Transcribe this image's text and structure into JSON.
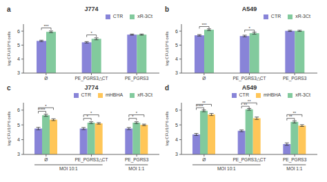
{
  "chart_data": [
    {
      "type": "bar",
      "panel_label": "a",
      "title": "J774",
      "ylabel": "log CFU/10^6 cells",
      "categories": [
        "Ø",
        "PE_PGRS3△CT",
        "PE_PGRS3"
      ],
      "series": [
        {
          "name": "CTR",
          "color": "#8884d8",
          "values": [
            5.3,
            5.2,
            5.75
          ],
          "errors": [
            0.05,
            0.05,
            0.04
          ]
        },
        {
          "name": "xR-3Ct",
          "color": "#82ca9d",
          "values": [
            5.95,
            5.45,
            5.75
          ],
          "errors": [
            0.06,
            0.07,
            0.04
          ]
        }
      ],
      "ylim": [
        3,
        6.5
      ],
      "yticks": [
        3,
        4,
        5,
        6
      ],
      "legend": "upper right",
      "annotations": [
        {
          "text": "***",
          "category": "Ø",
          "from": "CTR",
          "to": "xR-3Ct",
          "y": 6.08
        },
        {
          "text": "*",
          "category": "PE_PGRS3△CT",
          "from": "CTR",
          "to": "xR-3Ct",
          "y": 5.58
        }
      ]
    },
    {
      "type": "bar",
      "panel_label": "b",
      "title": "A549",
      "ylabel": "log CFU/10^6 cells",
      "categories": [
        "Ø",
        "PE_PGRS3△CT",
        "PE_PGRS3"
      ],
      "series": [
        {
          "name": "CTR",
          "color": "#8884d8",
          "values": [
            5.7,
            5.65,
            6.02
          ],
          "errors": [
            0.05,
            0.06,
            0.04
          ]
        },
        {
          "name": "xR-3Ct",
          "color": "#82ca9d",
          "values": [
            6.1,
            5.85,
            6.02
          ],
          "errors": [
            0.06,
            0.07,
            0.04
          ]
        }
      ],
      "ylim": [
        3,
        6.5
      ],
      "yticks": [
        3,
        4,
        5,
        6
      ],
      "legend": "upper right",
      "annotations": [
        {
          "text": "***",
          "category": "Ø",
          "from": "CTR",
          "to": "xR-3Ct",
          "y": 6.18
        },
        {
          "text": "*",
          "category": "PE_PGRS3△CT",
          "from": "CTR",
          "to": "xR-3Ct",
          "y": 5.93
        }
      ]
    },
    {
      "type": "bar",
      "panel_label": "c",
      "title": "J774",
      "ylabel": "log CFU/10^6 cells",
      "categories": [
        "Ø",
        "PE_PGRS3△CT",
        "PE_PGRS3"
      ],
      "series": [
        {
          "name": "CTR",
          "color": "#8884d8",
          "values": [
            4.75,
            4.75,
            4.75
          ],
          "errors": [
            0.08,
            0.07,
            0.07
          ]
        },
        {
          "name": "xR-3Ct",
          "color": "#82ca9d",
          "values": [
            5.65,
            5.15,
            5.15
          ],
          "errors": [
            0.07,
            0.06,
            0.06
          ]
        },
        {
          "name": "mHBHA",
          "color": "#ffc658",
          "values": [
            5.35,
            5.1,
            5.0
          ],
          "errors": [
            0.06,
            0.05,
            0.05
          ]
        }
      ],
      "ylim": [
        3,
        6.5
      ],
      "yticks": [
        3,
        4,
        5,
        6
      ],
      "legend": "upper right",
      "annotations": [
        {
          "text": "****",
          "category": "Ø",
          "from": "CTR",
          "to": "xR-3Ct",
          "y": 5.78
        },
        {
          "text": "*",
          "category": "Ø",
          "from": "CTR",
          "to": "mHBHA",
          "y": 6.02
        },
        {
          "text": "*",
          "category": "PE_PGRS3△CT",
          "from": "CTR",
          "to": "xR-3Ct",
          "y": 5.3
        },
        {
          "text": "*",
          "category": "PE_PGRS3△CT",
          "from": "CTR",
          "to": "mHBHA",
          "y": 5.54
        },
        {
          "text": "*",
          "category": "PE_PGRS3",
          "from": "CTR",
          "to": "xR-3Ct",
          "y": 5.3
        },
        {
          "text": "*",
          "category": "PE_PGRS3",
          "from": "CTR",
          "to": "mHBHA",
          "y": 5.54
        },
        {
          "text": "MOI 10:1",
          "categories": [
            "Ø",
            "PE_PGRS3△CT"
          ]
        },
        {
          "text": "MOI 1:1",
          "categories": [
            "PE_PGRS3"
          ]
        }
      ]
    },
    {
      "type": "bar",
      "panel_label": "d",
      "title": "A549",
      "ylabel": "log CFU/10^6 cells",
      "categories": [
        "Ø",
        "PE_PGRS3△CT",
        "PE_PGRS3"
      ],
      "series": [
        {
          "name": "CTR",
          "color": "#8884d8",
          "values": [
            4.35,
            4.6,
            3.7
          ],
          "errors": [
            0.07,
            0.06,
            0.08
          ]
        },
        {
          "name": "xR-3Ct",
          "color": "#82ca9d",
          "values": [
            5.95,
            6.05,
            5.2
          ],
          "errors": [
            0.06,
            0.06,
            0.07
          ]
        },
        {
          "name": "mHBHA",
          "color": "#ffc658",
          "values": [
            5.7,
            5.45,
            4.95
          ],
          "errors": [
            0.07,
            0.08,
            0.06
          ]
        }
      ],
      "ylim": [
        3,
        6.5
      ],
      "yticks": [
        3,
        4,
        5,
        6
      ],
      "legend": "upper right",
      "annotations": [
        {
          "text": "****",
          "category": "Ø",
          "from": "CTR",
          "to": "xR-3Ct",
          "y": 6.02
        },
        {
          "text": "**",
          "category": "Ø",
          "from": "CTR",
          "to": "mHBHA",
          "y": 6.25
        },
        {
          "text": "**",
          "category": "PE_PGRS3△CT",
          "from": "CTR",
          "to": "xR-3Ct",
          "y": 6.12
        },
        {
          "text": "**",
          "category": "PE_PGRS3△CT",
          "from": "CTR",
          "to": "mHBHA",
          "y": 6.35
        },
        {
          "text": "**",
          "category": "PE_PGRS3",
          "from": "CTR",
          "to": "xR-3Ct",
          "y": 5.3
        },
        {
          "text": "**",
          "category": "PE_PGRS3",
          "from": "CTR",
          "to": "mHBHA",
          "y": 5.55
        },
        {
          "text": "MOI 10:1",
          "categories": [
            "Ø",
            "PE_PGRS3△CT"
          ]
        },
        {
          "text": "MOI 1:1",
          "categories": [
            "PE_PGRS3"
          ]
        }
      ]
    }
  ]
}
